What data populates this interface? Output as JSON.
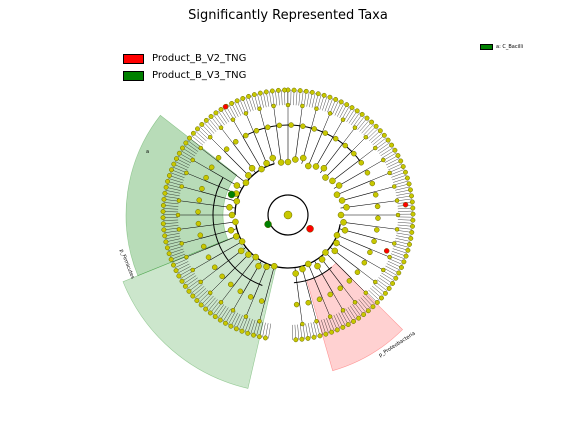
{
  "title": "Significantly Represented Taxa",
  "legend": {
    "entries": [
      {
        "label": "Product_B_V2_TNG",
        "color": "#ff0000"
      },
      {
        "label": "Product_B_V3_TNG",
        "color": "#008000"
      }
    ]
  },
  "side_legend": {
    "label": "a: C_Bacilli",
    "color": "#008000"
  },
  "clades": [
    {
      "label": "a",
      "color": "#008000"
    },
    {
      "label": "p_Firmicutes",
      "color": "#008000"
    },
    {
      "label": "p_Proteobacteria",
      "color": "#ff0000"
    }
  ],
  "colors": {
    "node": "#c8c800",
    "node_outline": "#666600",
    "enriched_red": "#ff0000",
    "enriched_green": "#008000"
  }
}
